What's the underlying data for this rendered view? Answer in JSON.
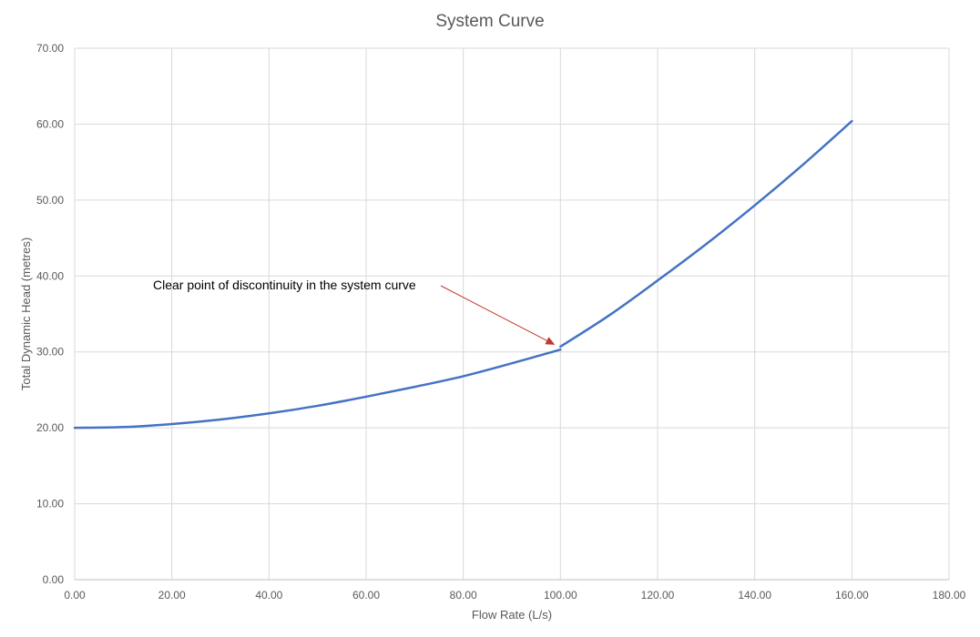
{
  "chart_data": {
    "type": "line",
    "title": "System Curve",
    "xlabel": "Flow Rate (L/s)",
    "ylabel": "Total Dynamic Head (metres)",
    "xlim": [
      0,
      180
    ],
    "ylim": [
      0,
      70
    ],
    "x_ticks": [
      "0.00",
      "20.00",
      "40.00",
      "60.00",
      "80.00",
      "100.00",
      "120.00",
      "140.00",
      "160.00",
      "180.00"
    ],
    "y_ticks": [
      "0.00",
      "10.00",
      "20.00",
      "30.00",
      "40.00",
      "50.00",
      "60.00",
      "70.00"
    ],
    "grid": true,
    "legend": "none",
    "line_color": "#4472c4",
    "annotation_color": "#c0392b",
    "series": [
      {
        "segments": [
          {
            "x": [
              0,
              10,
              20,
              30,
              40,
              50,
              60,
              70,
              80,
              90,
              100
            ],
            "y": [
              20.0,
              20.1,
              20.5,
              21.1,
              21.9,
              22.9,
              24.1,
              25.4,
              26.8,
              28.5,
              30.3
            ]
          },
          {
            "x": [
              100,
              110,
              120,
              130,
              140,
              150,
              160
            ],
            "y": [
              30.7,
              34.8,
              39.4,
              44.2,
              49.3,
              54.7,
              60.4
            ]
          }
        ]
      }
    ],
    "annotations": [
      {
        "text": "Clear point of discontinuity in the system curve",
        "target_x": 100,
        "target_y": 30.7
      }
    ]
  }
}
